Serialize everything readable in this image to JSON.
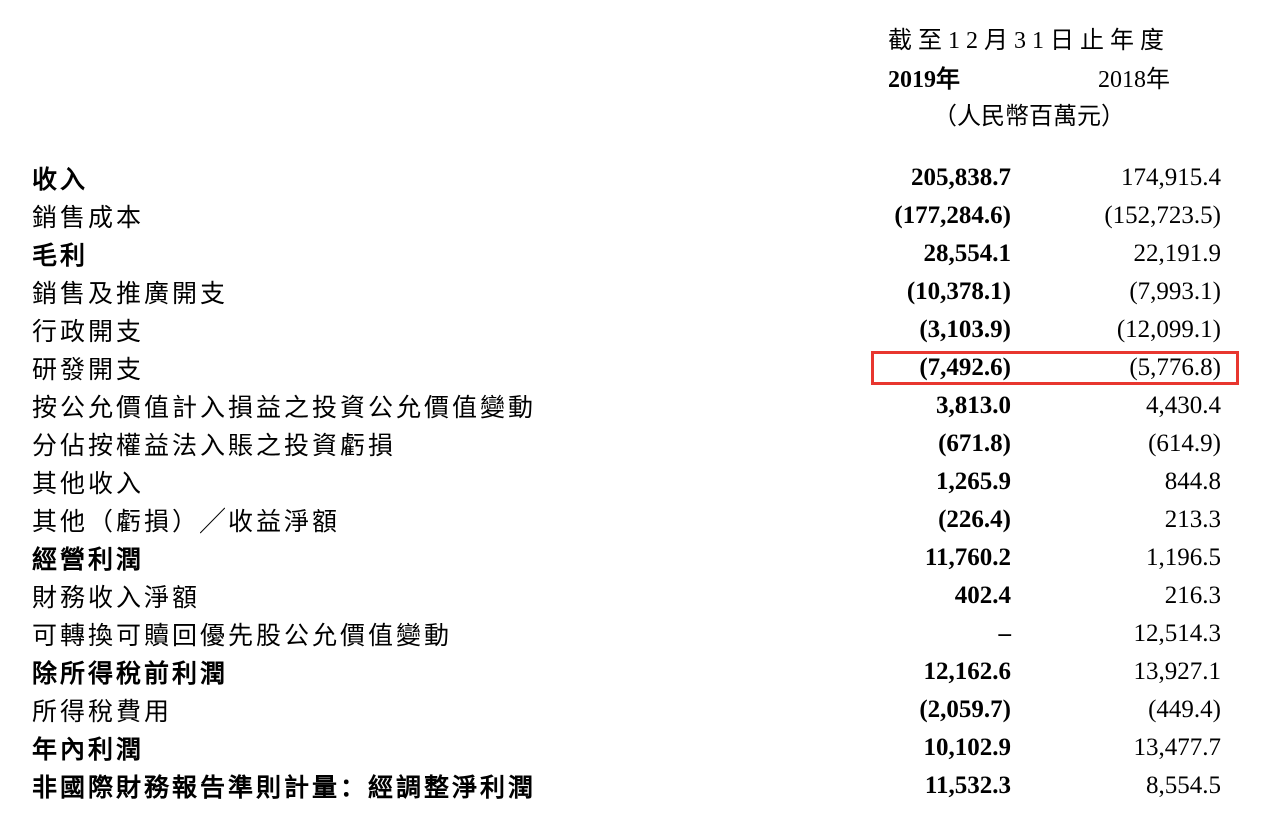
{
  "header": {
    "title": "截至12月31日止年度",
    "year_2019": "2019年",
    "year_2018": "2018年",
    "unit": "（人民幣百萬元）"
  },
  "rows": [
    {
      "label": "收入",
      "bold_label": true,
      "val_2019": "205,838.7",
      "val_2018": "174,915.4"
    },
    {
      "label": "銷售成本",
      "bold_label": false,
      "val_2019": "(177,284.6)",
      "val_2018": "(152,723.5)"
    },
    {
      "label": "毛利",
      "bold_label": true,
      "val_2019": "28,554.1",
      "val_2018": "22,191.9"
    },
    {
      "label": "銷售及推廣開支",
      "bold_label": false,
      "val_2019": "(10,378.1)",
      "val_2018": "(7,993.1)"
    },
    {
      "label": "行政開支",
      "bold_label": false,
      "val_2019": "(3,103.9)",
      "val_2018": "(12,099.1)"
    },
    {
      "label": "研發開支",
      "bold_label": false,
      "val_2019": "(7,492.6)",
      "val_2018": "(5,776.8)",
      "highlight": true
    },
    {
      "label": "按公允價值計入損益之投資公允價值變動",
      "bold_label": false,
      "val_2019": "3,813.0",
      "val_2018": "4,430.4"
    },
    {
      "label": "分佔按權益法入賬之投資虧損",
      "bold_label": false,
      "val_2019": "(671.8)",
      "val_2018": "(614.9)"
    },
    {
      "label": "其他收入",
      "bold_label": false,
      "val_2019": "1,265.9",
      "val_2018": "844.8"
    },
    {
      "label": "其他（虧損）╱收益淨額",
      "bold_label": false,
      "val_2019": "(226.4)",
      "val_2018": "213.3"
    },
    {
      "label": "經營利潤",
      "bold_label": true,
      "val_2019": "11,760.2",
      "val_2018": "1,196.5"
    },
    {
      "label": "財務收入淨額",
      "bold_label": false,
      "val_2019": "402.4",
      "val_2018": "216.3"
    },
    {
      "label": "可轉換可贖回優先股公允價值變動",
      "bold_label": false,
      "val_2019": "–",
      "val_2018": "12,514.3"
    },
    {
      "label": "除所得稅前利潤",
      "bold_label": true,
      "val_2019": "12,162.6",
      "val_2018": "13,927.1"
    },
    {
      "label": "所得稅費用",
      "bold_label": false,
      "val_2019": "(2,059.7)",
      "val_2018": "(449.4)"
    },
    {
      "label": "年內利潤",
      "bold_label": true,
      "val_2019": "10,102.9",
      "val_2018": "13,477.7"
    },
    {
      "label": "非國際財務報告準則計量：經調整淨利潤",
      "bold_label": true,
      "val_2019": "11,532.3",
      "val_2018": "8,554.5"
    }
  ],
  "styling": {
    "highlight_color": "#e8362f",
    "background_color": "#ffffff",
    "text_color": "#000000",
    "font_family_cjk": "SimSun",
    "font_family_numeric": "Times New Roman",
    "body_font_size": 25,
    "header_font_size": 24,
    "highlight_border_width": 3
  }
}
